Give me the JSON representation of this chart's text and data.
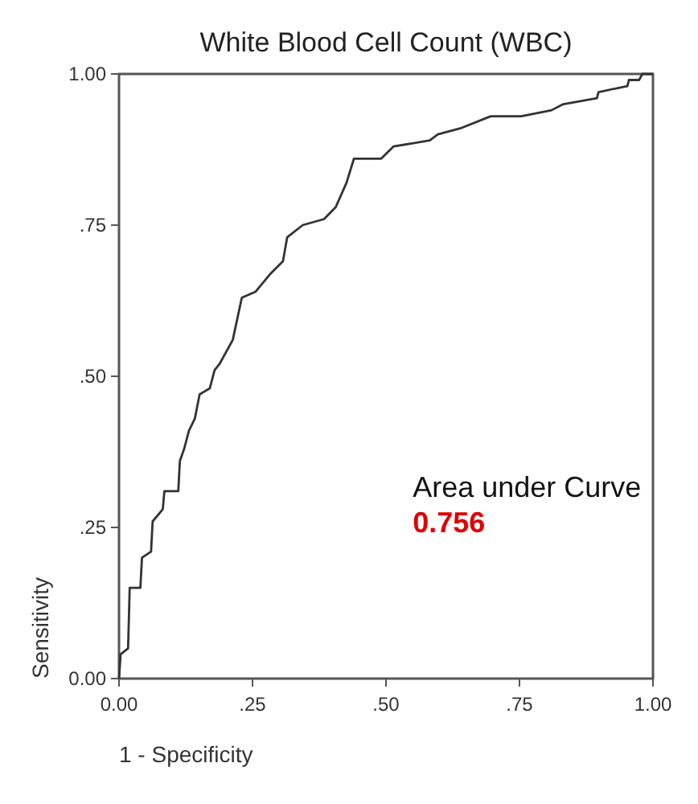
{
  "chart_data": {
    "type": "line",
    "title": "White Blood Cell Count (WBC)",
    "xlabel": "1 - Specificity",
    "ylabel": "Sensitivity",
    "series": [
      {
        "color": "#333333",
        "x": [
          0,
          0.003,
          0.017,
          0.02,
          0.04,
          0.043,
          0.06,
          0.063,
          0.082,
          0.085,
          0.111,
          0.114,
          0.122,
          0.131,
          0.142,
          0.151,
          0.17,
          0.179,
          0.188,
          0.213,
          0.23,
          0.256,
          0.284,
          0.307,
          0.315,
          0.344,
          0.384,
          0.406,
          0.426,
          0.44,
          0.457,
          0.491,
          0.514,
          0.582,
          0.597,
          0.639,
          0.696,
          0.753,
          0.81,
          0.832,
          0.895,
          0.898,
          0.952,
          0.955,
          0.974,
          0.98,
          1
        ],
        "values": [
          0,
          0.04,
          0.05,
          0.15,
          0.15,
          0.2,
          0.21,
          0.26,
          0.28,
          0.31,
          0.31,
          0.36,
          0.38,
          0.41,
          0.43,
          0.47,
          0.48,
          0.51,
          0.52,
          0.56,
          0.63,
          0.64,
          0.67,
          0.69,
          0.73,
          0.75,
          0.76,
          0.78,
          0.82,
          0.86,
          0.86,
          0.86,
          0.88,
          0.89,
          0.9,
          0.91,
          0.93,
          0.93,
          0.94,
          0.95,
          0.96,
          0.97,
          0.98,
          0.99,
          0.99,
          1,
          1
        ]
      }
    ],
    "xlim": [
      0,
      1
    ],
    "ylim": [
      0,
      1
    ],
    "xticks": [
      {
        "value": 0,
        "label": "0.00"
      },
      {
        "value": 0.25,
        "label": ".25"
      },
      {
        "value": 0.5,
        "label": ".50"
      },
      {
        "value": 0.75,
        "label": ".75"
      },
      {
        "value": 1,
        "label": "1.00"
      }
    ],
    "yticks": [
      {
        "value": 0,
        "label": "0.00"
      },
      {
        "value": 0.25,
        "label": ".25"
      },
      {
        "value": 0.5,
        "label": ".50"
      },
      {
        "value": 0.75,
        "label": ".75"
      },
      {
        "value": 1,
        "label": "1.00"
      }
    ],
    "annotations": [
      "Area under Curve",
      "0.756"
    ],
    "marker": "none",
    "line_style": "solid"
  }
}
